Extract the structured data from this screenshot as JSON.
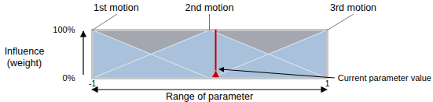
{
  "chart_data": {
    "type": "line",
    "x": [
      -1,
      -0.5,
      0,
      0.5,
      1
    ],
    "series": [
      {
        "name": "1st motion",
        "values": [
          100,
          50,
          0,
          0,
          0
        ]
      },
      {
        "name": "2nd motion",
        "values": [
          0,
          50,
          100,
          50,
          0
        ]
      },
      {
        "name": "3rd motion",
        "values": [
          0,
          0,
          0,
          50,
          100
        ]
      }
    ],
    "color": "#e4ecf5",
    "xlim": [
      -1,
      1
    ],
    "xticks": [
      -1,
      1
    ],
    "ylim": [
      0,
      100
    ],
    "yticks": [
      {
        "value": 0,
        "label": "0%"
      },
      {
        "value": 100,
        "label": "100%"
      }
    ],
    "xlabel": "Range of parameter",
    "ylabel": "Influence (weight)",
    "annotations": [
      {
        "text": "Current parameter value",
        "x": 0.05,
        "color": "#c00000"
      }
    ]
  }
}
